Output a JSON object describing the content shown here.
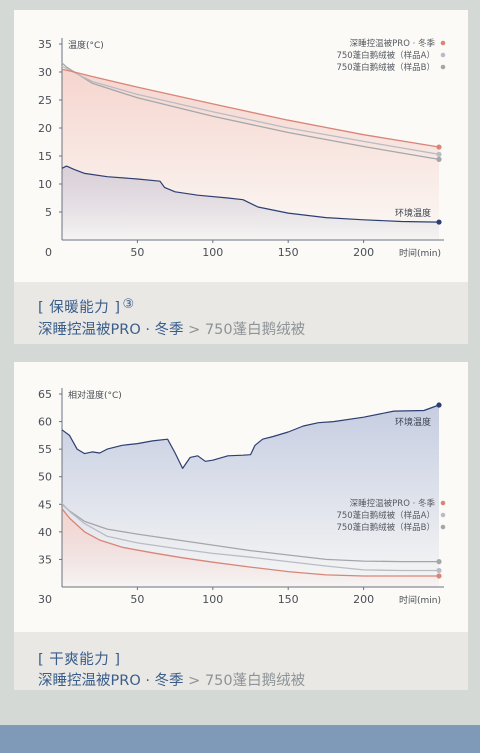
{
  "sections": [
    {
      "title": "[ 保暖能力 ]",
      "title_mark": "③",
      "subtitle_main": "深睡控温被PRO · 冬季",
      "subtitle_arrow": ">",
      "subtitle_compare": "750蓬白鹅绒被"
    },
    {
      "title": "[ 干爽能力 ]",
      "title_mark": "",
      "subtitle_main": "深睡控温被PRO · 冬季",
      "subtitle_arrow": ">",
      "subtitle_compare": "750蓬白鹅绒被"
    }
  ],
  "colors": {
    "pro": "#d98577",
    "sampleA": "#b9bcc4",
    "sampleB": "#a4a7aa",
    "ambient": "#2d3f72",
    "ambient_fill": "#c3cbe0",
    "pro_fill": "#f6d3cc",
    "axis": "#6b7280",
    "title_blue": "#3a5d8c"
  },
  "chart_data": [
    {
      "type": "line",
      "ylabel": "温度(°C)",
      "xlabel": "时间(min)",
      "xlim": [
        0,
        250
      ],
      "ylim": [
        0,
        35
      ],
      "x_ticks": [
        50,
        100,
        150,
        200
      ],
      "y_ticks": [
        5,
        10,
        15,
        20,
        25,
        30,
        35
      ],
      "origin_label": "0",
      "legend_position": "top-right",
      "series": [
        {
          "name": "深睡控温被PRO · 冬季",
          "key": "pro",
          "x": [
            0,
            5,
            20,
            50,
            100,
            150,
            200,
            250
          ],
          "values": [
            30.5,
            30.2,
            29.2,
            27.3,
            24.3,
            21.4,
            18.8,
            16.6
          ]
        },
        {
          "name": "750蓬白鹅绒被（样品A）",
          "key": "sampleA",
          "x": [
            0,
            3,
            20,
            50,
            100,
            150,
            200,
            250
          ],
          "values": [
            31.0,
            30.6,
            28.3,
            26.0,
            22.9,
            20.0,
            17.6,
            15.3
          ]
        },
        {
          "name": "750蓬白鹅绒被（样品B）",
          "key": "sampleB",
          "x": [
            0,
            3,
            20,
            50,
            100,
            150,
            200,
            250
          ],
          "values": [
            31.6,
            30.9,
            28.0,
            25.4,
            22.1,
            19.2,
            16.7,
            14.4
          ]
        },
        {
          "name": "环境温度",
          "key": "ambient",
          "x": [
            0,
            3,
            8,
            15,
            30,
            50,
            65,
            68,
            75,
            90,
            110,
            120,
            130,
            150,
            175,
            200,
            225,
            250
          ],
          "values": [
            12.8,
            13.2,
            12.6,
            11.9,
            11.3,
            10.9,
            10.5,
            9.4,
            8.6,
            8.0,
            7.5,
            7.2,
            5.9,
            4.8,
            4.0,
            3.6,
            3.3,
            3.2
          ]
        }
      ]
    },
    {
      "type": "line",
      "ylabel": "相对湿度(°C)",
      "xlabel": "时间(min)",
      "xlim": [
        0,
        250
      ],
      "ylim": [
        30,
        65
      ],
      "x_ticks": [
        50,
        100,
        150,
        200
      ],
      "x_tick_30": "30",
      "y_ticks": [
        35,
        40,
        45,
        50,
        55,
        60,
        65
      ],
      "origin_label": "30",
      "legend_position": "middle-right",
      "series": [
        {
          "name": "深睡控温被PRO · 冬季",
          "key": "pro",
          "x": [
            0,
            5,
            15,
            25,
            40,
            60,
            80,
            100,
            125,
            150,
            175,
            200,
            225,
            250
          ],
          "values": [
            44.2,
            42.5,
            40.0,
            38.5,
            37.2,
            36.2,
            35.3,
            34.5,
            33.6,
            32.8,
            32.2,
            32.0,
            32.0,
            32.0
          ]
        },
        {
          "name": "750蓬白鹅绒被（样品A）",
          "key": "sampleA",
          "x": [
            0,
            5,
            15,
            30,
            50,
            75,
            100,
            125,
            150,
            175,
            200,
            225,
            250
          ],
          "values": [
            45.2,
            43.7,
            41.5,
            39.2,
            38.0,
            37.0,
            36.1,
            35.4,
            34.6,
            33.8,
            33.1,
            33.0,
            33.0
          ]
        },
        {
          "name": "750蓬白鹅绒被（样品B）",
          "key": "sampleB",
          "x": [
            0,
            5,
            15,
            30,
            50,
            75,
            100,
            125,
            150,
            175,
            200,
            225,
            250
          ],
          "values": [
            45.0,
            43.8,
            41.9,
            40.5,
            39.6,
            38.6,
            37.6,
            36.6,
            35.8,
            35.0,
            34.7,
            34.6,
            34.6
          ]
        },
        {
          "name": "环境温度",
          "key": "ambient",
          "x": [
            0,
            5,
            10,
            15,
            20,
            25,
            30,
            40,
            50,
            60,
            70,
            75,
            80,
            85,
            90,
            95,
            100,
            110,
            120,
            125,
            128,
            133,
            140,
            150,
            160,
            170,
            180,
            200,
            220,
            240,
            250
          ],
          "values": [
            58.5,
            57.5,
            55.0,
            54.2,
            54.5,
            54.3,
            55.0,
            55.7,
            56.0,
            56.5,
            56.8,
            54.3,
            51.5,
            53.5,
            53.8,
            52.8,
            53.0,
            53.8,
            53.9,
            54.0,
            55.7,
            56.8,
            57.3,
            58.1,
            59.2,
            59.8,
            60.0,
            60.8,
            61.9,
            62.0,
            63.0
          ]
        }
      ]
    }
  ]
}
